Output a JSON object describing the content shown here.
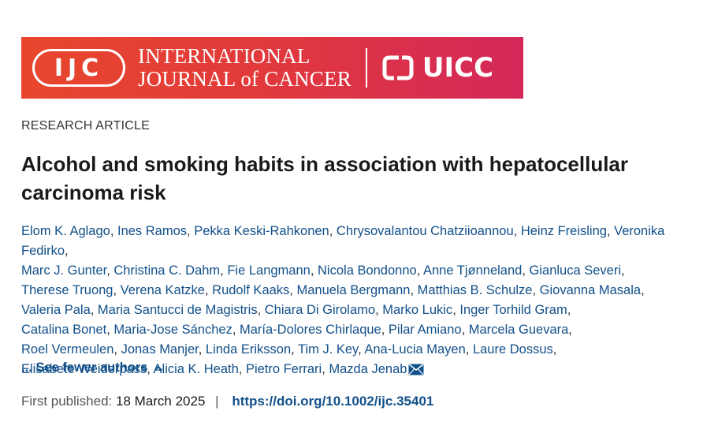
{
  "banner": {
    "logo_text": "IJC",
    "journal_name_line1": "INTERNATIONAL",
    "journal_name_line2": "JOURNAL of CANCER",
    "partner_logo_text": "UICC",
    "colors": {
      "gradient_start": "#e8472e",
      "gradient_end": "#d4285a",
      "text": "#ffffff"
    }
  },
  "article": {
    "type": "RESEARCH ARTICLE",
    "title": "Alcohol and smoking habits in association with hepatocellular carcinoma risk",
    "authors": [
      "Elom K. Aglago",
      "Ines Ramos",
      "Pekka Keski-Rahkonen",
      "Chrysovalantou Chatziioannou",
      "Heinz Freisling",
      "Veronika Fedirko",
      "Marc J. Gunter",
      "Christina C. Dahm",
      "Fie Langmann",
      "Nicola Bondonno",
      "Anne Tjønneland",
      "Gianluca Severi",
      "Therese Truong",
      "Verena Katzke",
      "Rudolf Kaaks",
      "Manuela Bergmann",
      "Matthias B. Schulze",
      "Giovanna Masala",
      "Valeria Pala",
      "Maria Santucci de Magistris",
      "Chiara Di Girolamo",
      "Marko Lukic",
      "Inger Torhild Gram",
      "Catalina Bonet",
      "Maria-Jose Sánchez",
      "María-Dolores Chirlaque",
      "Pilar Amiano",
      "Marcela Guevara",
      "Roel Vermeulen",
      "Jonas Manjer",
      "Linda Eriksson",
      "Tim J. Key",
      "Ana-Lucia Mayen",
      "Laure Dossus",
      "Elisabete Weiderpass",
      "Alicia K. Heath",
      "Pietro Ferrari",
      "Mazda Jenab"
    ],
    "author_line_breaks": [
      5,
      11,
      17,
      22,
      27,
      33
    ],
    "corresponding_icon": "envelope-icon",
    "see_fewer_label": "... See fewer authors",
    "see_fewer_icon": "chevron-up-icon",
    "first_published_label": "First published:",
    "first_published_date": "18 March 2025",
    "separator": "|",
    "doi": "https://doi.org/10.1002/ijc.35401",
    "colors": {
      "link": "#12508a",
      "text": "#1a1a1a",
      "muted": "#555555"
    }
  }
}
